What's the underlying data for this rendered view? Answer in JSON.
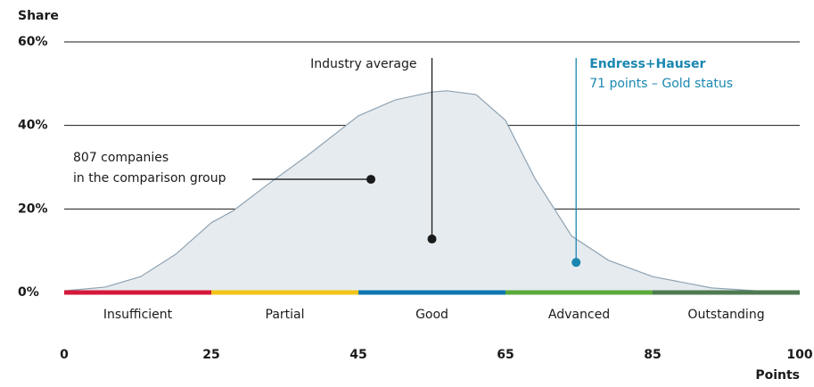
{
  "chart_data": {
    "type": "area",
    "y_label": "Share",
    "x_label": "Points",
    "x": [
      0,
      7,
      13,
      19,
      25,
      28,
      33,
      38,
      45,
      50,
      55,
      57,
      61,
      65,
      69,
      74,
      79,
      85,
      91,
      97,
      100
    ],
    "series": [
      {
        "name": "807 companies in the comparison group",
        "color": "#8fa3b3",
        "fill": "#e6ebef",
        "values": [
          0.4,
          1.3,
          3.8,
          9.2,
          16.7,
          19.6,
          26.3,
          32.7,
          42.3,
          46.1,
          48,
          48.3,
          47.4,
          41.2,
          27.3,
          13.5,
          7.7,
          3.8,
          1.1,
          0.2,
          0.2
        ]
      }
    ],
    "xlim": [
      0,
      100
    ],
    "xticks": [
      0,
      25,
      45,
      65,
      85,
      100
    ],
    "ylim": [
      0,
      60
    ],
    "yticks": [
      {
        "value": 0,
        "label": "0%"
      },
      {
        "value": 20,
        "label": "20%"
      },
      {
        "value": 40,
        "label": "40%"
      },
      {
        "value": 60,
        "label": "60%"
      }
    ],
    "grid": true,
    "bands": [
      "Insufficient",
      "Partial",
      "Good",
      "Advanced",
      "Outstanding"
    ],
    "band_colors": [
      "#d5173a",
      "#f2c417",
      "#0f77b0",
      "#5aaa3a",
      "#4e7a50"
    ],
    "annotations": [
      {
        "lines": [
          "807 companies",
          "in the comparison group"
        ],
        "x": 46.7,
        "y": 27.1,
        "color": "#1a1a1a"
      },
      {
        "lines": [
          "Industry average"
        ],
        "x": 55,
        "y": 12.8,
        "color": "#1a1a1a"
      },
      {
        "lines": [
          "Endress+Hauser",
          "71 points – Gold status"
        ],
        "x": 74.6,
        "y": 7.2,
        "color": "#1a87b0"
      }
    ]
  }
}
